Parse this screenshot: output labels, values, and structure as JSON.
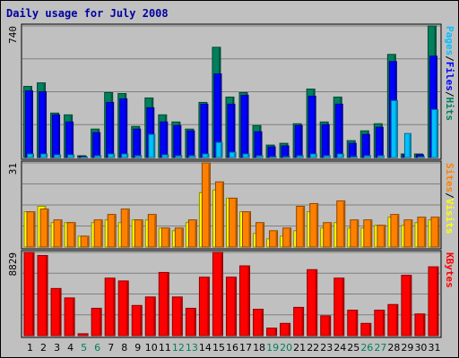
{
  "colors": {
    "frame_bg": "#c0c0c0",
    "title": "#0000a0",
    "hits": "#00805c",
    "files": "#0000ff",
    "pages": "#00c0ff",
    "visits": "#ffff00",
    "sites": "#ff8000",
    "kbytes": "#ff0000",
    "weekend_label": "#00805c",
    "grid": "#808080"
  },
  "chart_data": {
    "type": "bar",
    "title": "Daily usage for July 2008",
    "categories": [
      "1",
      "2",
      "3",
      "4",
      "5",
      "6",
      "7",
      "8",
      "9",
      "10",
      "11",
      "12",
      "13",
      "14",
      "15",
      "16",
      "17",
      "18",
      "19",
      "20",
      "21",
      "22",
      "23",
      "24",
      "25",
      "26",
      "27",
      "28",
      "29",
      "30",
      "31"
    ],
    "weekend_days": [
      "5",
      "6",
      "12",
      "13",
      "19",
      "20",
      "26",
      "27"
    ],
    "panels": [
      {
        "id": "hits-files-pages",
        "max_label": "740",
        "ylim": [
          0,
          740
        ],
        "legend": [
          "Pages",
          "/",
          "Files",
          "/",
          "Hits"
        ],
        "series": [
          {
            "name": "Hits",
            "values": [
              400,
              420,
              250,
              240,
              10,
              160,
              365,
              360,
              175,
              335,
              240,
              200,
              160,
              310,
              620,
              340,
              365,
              180,
              70,
              80,
              190,
              385,
              200,
              340,
              95,
              150,
              190,
              580,
              20,
              20,
              740
            ]
          },
          {
            "name": "Files",
            "values": [
              375,
              370,
              240,
              200,
              5,
              140,
              310,
              330,
              160,
              280,
              200,
              180,
              150,
              300,
              470,
              300,
              350,
              145,
              60,
              65,
              180,
              345,
              185,
              300,
              80,
              130,
              170,
              540,
              15,
              15,
              570
            ]
          },
          {
            "name": "Pages",
            "values": [
              20,
              20,
              15,
              15,
              2,
              10,
              20,
              20,
              10,
              130,
              15,
              10,
              10,
              20,
              85,
              30,
              20,
              10,
              5,
              5,
              10,
              20,
              10,
              20,
              5,
              10,
              10,
              320,
              135,
              5,
              270
            ]
          }
        ]
      },
      {
        "id": "visits-sites",
        "max_label": "31",
        "ylim": [
          0,
          31
        ],
        "legend": [
          "Sites",
          "/",
          "Visits"
        ],
        "series": [
          {
            "name": "Visits",
            "values": [
              13,
              15,
              9,
              9,
              4,
              9,
              10,
              9,
              10,
              10,
              7,
              6,
              9,
              20,
              21,
              18,
              13,
              5,
              3,
              4,
              6,
              13,
              7,
              9,
              7,
              7,
              8,
              11,
              8,
              9,
              10
            ]
          },
          {
            "name": "Sites",
            "values": [
              13,
              14,
              10,
              9,
              4,
              10,
              12,
              14,
              10,
              12,
              7,
              7,
              10,
              31,
              24,
              18,
              13,
              9,
              6,
              7,
              15,
              16,
              9,
              17,
              10,
              10,
              8,
              12,
              10,
              11,
              11
            ]
          }
        ]
      },
      {
        "id": "kbytes",
        "max_label": "8829",
        "ylim": [
          0,
          8829
        ],
        "legend": [
          "KBytes"
        ],
        "series": [
          {
            "name": "KBytes",
            "values": [
              8829,
              8500,
              5000,
              4000,
              200,
              2900,
              6100,
              5800,
              3200,
              4100,
              6700,
              4100,
              2900,
              6200,
              8830,
              6200,
              7400,
              2800,
              800,
              1300,
              3000,
              7000,
              2100,
              6100,
              2700,
              1300,
              2700,
              3300,
              6400,
              2300,
              7300
            ]
          }
        ]
      }
    ]
  }
}
